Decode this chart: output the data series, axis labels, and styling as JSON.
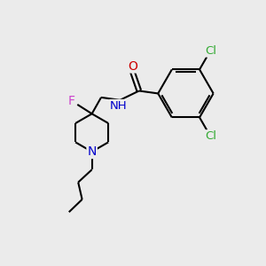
{
  "bg_color": "#ebebeb",
  "atom_colors": {
    "C": "#000000",
    "N": "#0000cc",
    "O": "#cc0000",
    "F": "#cc44cc",
    "Cl": "#33aa33",
    "H": "#000000"
  },
  "bond_color": "#000000",
  "bond_width": 1.5,
  "font_size_atoms": 9.5,
  "figsize": [
    3.0,
    3.0
  ],
  "dpi": 100
}
